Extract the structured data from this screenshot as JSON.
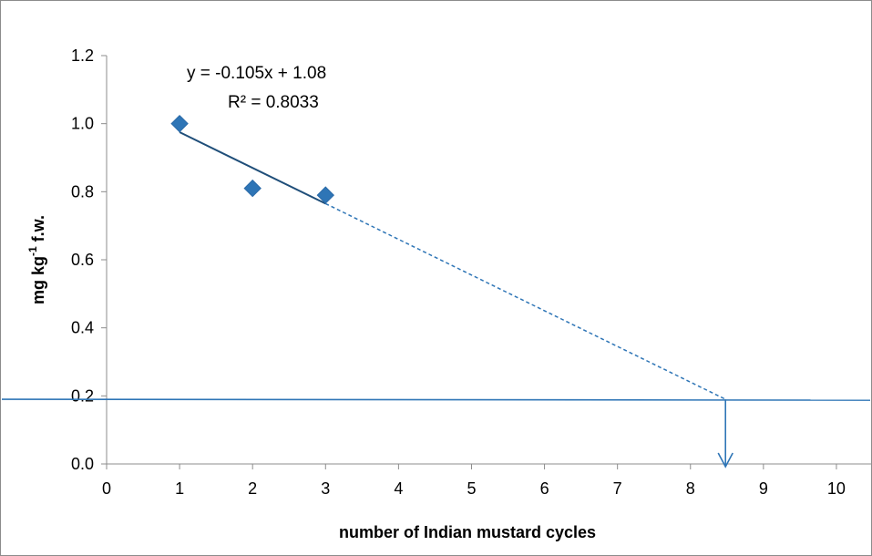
{
  "chart_data": {
    "type": "scatter",
    "title": "",
    "xlabel": "number of Indian mustard cycles",
    "ylabel": "mg kg-1 f.w.",
    "ylabel_parts": {
      "base": "mg kg",
      "sup": "-1",
      "tail": " f.w."
    },
    "xlim": [
      0,
      10.5
    ],
    "ylim": [
      0,
      1.2
    ],
    "x_ticks": [
      0,
      1,
      2,
      3,
      4,
      5,
      6,
      7,
      8,
      9,
      10
    ],
    "y_ticks": [
      0.0,
      0.2,
      0.4,
      0.6,
      0.8,
      1.0,
      1.2
    ],
    "y_tick_labels": [
      "0.0",
      "0.2",
      "0.4",
      "0.6",
      "0.8",
      "1.0",
      "1.2"
    ],
    "grid": false,
    "legend": "none",
    "series": [
      {
        "x": [
          1,
          2,
          3
        ],
        "y": [
          1.0,
          0.81,
          0.79
        ],
        "marker": "diamond",
        "color": "#2e75b6"
      }
    ],
    "trendline": {
      "slope": -0.105,
      "intercept": 1.08,
      "x_range": [
        1,
        3
      ],
      "color": "#1f4e79"
    },
    "extrapolation": {
      "x_range": [
        3,
        8.48
      ],
      "style": "dashed",
      "color": "#2e75b6"
    },
    "threshold": {
      "y": 0.19,
      "color": "#2e75b6"
    },
    "intersection_x": 8.48,
    "annotations": {
      "equation": "y = -0.105x + 1.08",
      "r2": "R² = 0.8033"
    }
  }
}
